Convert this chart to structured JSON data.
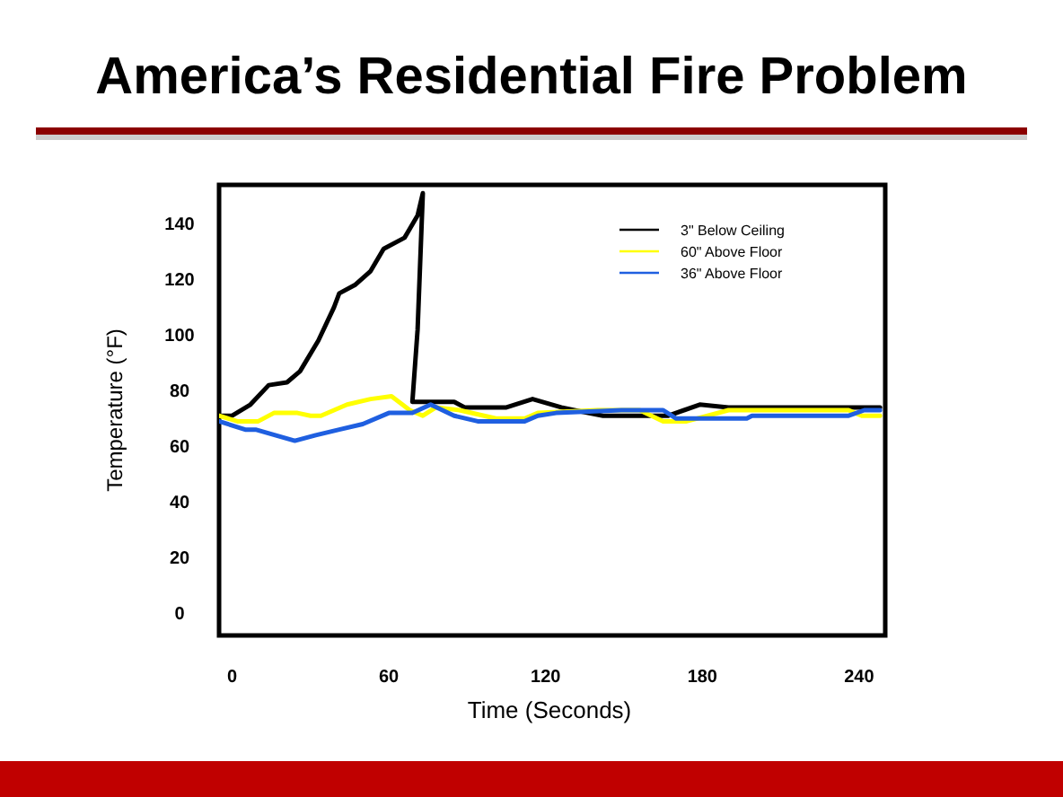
{
  "chart_data": {
    "type": "line",
    "title": "America’s Residential Fire Problem",
    "xlabel": "Time (Seconds)",
    "ylabel": "Temperature (°F)",
    "xlim": [
      -5,
      250
    ],
    "xticks": [
      0,
      60,
      120,
      180,
      240
    ],
    "ylim": [
      -8,
      154
    ],
    "yticks": [
      0,
      20,
      40,
      60,
      80,
      100,
      120,
      140
    ],
    "grid": false,
    "legend": "top right",
    "marker": "none",
    "line_style": "solid",
    "series": [
      {
        "name": "3\" Below Ceiling",
        "color": "#000000",
        "x": [
          -5,
          0,
          7,
          14,
          21,
          26,
          33,
          39,
          41,
          47,
          53,
          58,
          66,
          71,
          73,
          71,
          69,
          85,
          89,
          105,
          115,
          126,
          131,
          142,
          167,
          179,
          190,
          248
        ],
        "values": [
          71,
          71,
          75,
          82,
          83,
          87,
          98,
          110,
          115,
          118,
          123,
          131,
          135,
          143,
          151,
          102,
          76,
          76,
          74,
          74,
          77,
          74,
          73,
          71,
          71,
          75,
          74,
          74
        ]
      },
      {
        "name": "60\" Above Floor",
        "color": "#ffff00",
        "x": [
          -5,
          2,
          10,
          16,
          25,
          30,
          34,
          44,
          53,
          61,
          68,
          73,
          78,
          87,
          101,
          112,
          117,
          140,
          156,
          165,
          174,
          190,
          236,
          241,
          248
        ],
        "values": [
          71,
          69,
          69,
          72,
          72,
          71,
          71,
          75,
          77,
          78,
          73,
          71,
          74,
          73,
          70,
          70,
          72,
          73,
          73,
          69,
          69,
          73,
          73,
          71,
          71
        ]
      },
      {
        "name": "36\" Above Floor",
        "color": "#1f5fe0",
        "x": [
          -5,
          5,
          9,
          24,
          32,
          41,
          50,
          60,
          69,
          76,
          85,
          94,
          112,
          117,
          124,
          149,
          165,
          170,
          197,
          199,
          236,
          242,
          248
        ],
        "values": [
          69,
          66,
          66,
          62,
          64,
          66,
          68,
          72,
          72,
          75,
          71,
          69,
          69,
          71,
          72,
          73,
          73,
          70,
          70,
          71,
          71,
          73,
          73
        ]
      }
    ]
  }
}
